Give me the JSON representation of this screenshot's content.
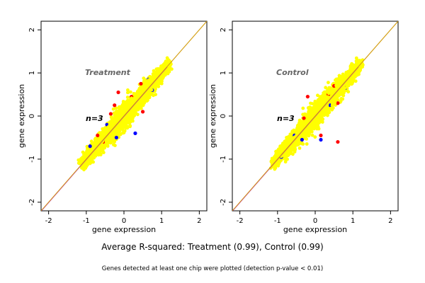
{
  "figure": {
    "caption": "Average R-squared: Treatment (0.99), Control (0.99)",
    "footnote": "Genes detected at least one chip were plotted (detection p-value < 0.01)"
  },
  "colors": {
    "point_primary": "#ffff00",
    "point_red": "#ff0000",
    "point_blue": "#0000ff",
    "diagonal_line": "#d4a017",
    "regression_line": "#b000b0",
    "panel_bg": "#ffffff",
    "frame": "#000000"
  },
  "chart_data": [
    {
      "type": "scatter",
      "title": "",
      "annotation": "Treatment",
      "n_label": "n=3",
      "xlabel": "gene expression",
      "ylabel": "gene expression",
      "xlim": [
        -2.2,
        2.2
      ],
      "ylim": [
        -2.2,
        2.2
      ],
      "xticks": [
        -2,
        -1,
        0,
        1,
        2
      ],
      "yticks": [
        -2,
        -1,
        0,
        1,
        2
      ],
      "grid": false,
      "reference_line": "y = x",
      "series": [
        {
          "color": "yellow",
          "points": [
            [
              -1.05,
              -1.1
            ],
            [
              -0.8,
              -0.85
            ],
            [
              -0.5,
              -0.45
            ],
            [
              -0.2,
              -0.15
            ],
            [
              0.0,
              0.0
            ],
            [
              0.3,
              0.35
            ],
            [
              0.6,
              0.65
            ],
            [
              0.9,
              0.95
            ],
            [
              1.1,
              1.15
            ]
          ]
        },
        {
          "color": "red",
          "points": [
            [
              -0.15,
              0.55
            ],
            [
              -0.55,
              -0.6
            ],
            [
              0.5,
              0.1
            ],
            [
              -0.7,
              -0.45
            ],
            [
              0.45,
              0.75
            ],
            [
              -0.25,
              0.25
            ],
            [
              -0.35,
              0.05
            ],
            [
              0.2,
              0.45
            ]
          ]
        },
        {
          "color": "blue",
          "points": [
            [
              0.3,
              -0.4
            ],
            [
              0.75,
              0.6
            ],
            [
              -0.9,
              -0.7
            ],
            [
              0.65,
              0.85
            ],
            [
              -0.2,
              -0.5
            ],
            [
              -0.45,
              -0.2
            ]
          ]
        }
      ]
    },
    {
      "type": "scatter",
      "title": "",
      "annotation": "Control",
      "n_label": "n=3",
      "xlabel": "gene expression",
      "ylabel": "gene expression",
      "xlim": [
        -2.2,
        2.2
      ],
      "ylim": [
        -2.2,
        2.2
      ],
      "xticks": [
        -2,
        -1,
        0,
        1,
        2
      ],
      "yticks": [
        -2,
        -1,
        0,
        1,
        2
      ],
      "grid": false,
      "reference_line": "y = x",
      "series": [
        {
          "color": "yellow",
          "points": [
            [
              -1.05,
              -1.1
            ],
            [
              -0.8,
              -0.85
            ],
            [
              -0.5,
              -0.45
            ],
            [
              -0.2,
              -0.15
            ],
            [
              0.0,
              0.0
            ],
            [
              0.3,
              0.35
            ],
            [
              0.6,
              0.65
            ],
            [
              0.9,
              0.95
            ],
            [
              1.1,
              1.15
            ]
          ]
        },
        {
          "color": "red",
          "points": [
            [
              -0.2,
              0.45
            ],
            [
              0.35,
              0.5
            ],
            [
              0.6,
              -0.6
            ],
            [
              0.15,
              -0.45
            ],
            [
              0.6,
              0.3
            ],
            [
              -0.85,
              -0.9
            ],
            [
              -0.3,
              -0.05
            ],
            [
              0.5,
              0.7
            ]
          ]
        },
        {
          "color": "blue",
          "points": [
            [
              -0.35,
              -0.55
            ],
            [
              0.15,
              -0.55
            ],
            [
              -0.9,
              -0.95
            ],
            [
              0.8,
              0.65
            ],
            [
              -0.55,
              -0.45
            ],
            [
              0.4,
              0.25
            ]
          ]
        }
      ]
    }
  ]
}
